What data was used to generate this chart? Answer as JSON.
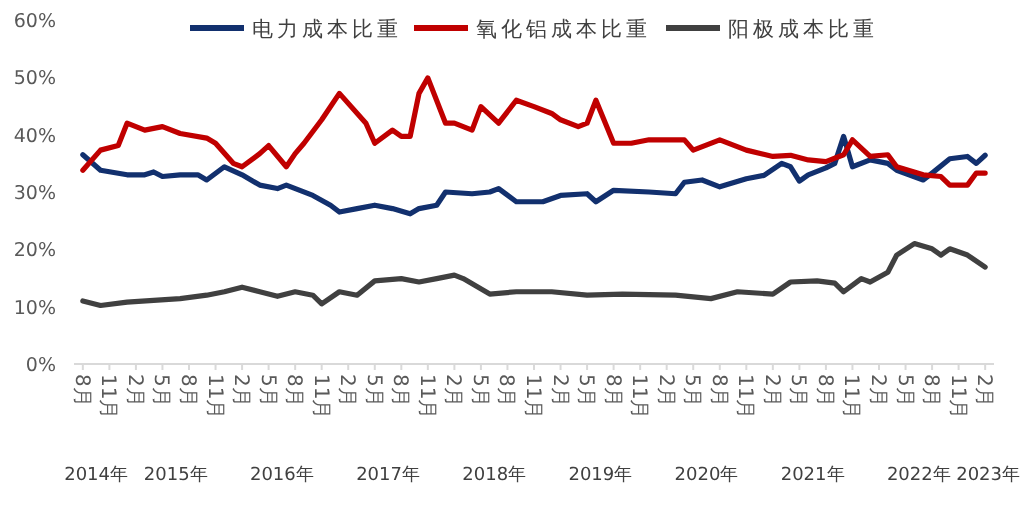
{
  "chart_data": {
    "type": "line",
    "legend": "top",
    "grid": false,
    "marker": "none",
    "line_style": "solid",
    "xlim": [
      "2014-07",
      "2023-03"
    ],
    "ylim": [
      0,
      60
    ],
    "yticks": [
      {
        "value": 0,
        "label": "0%"
      },
      {
        "value": 10,
        "label": "10%"
      },
      {
        "value": 20,
        "label": "20%"
      },
      {
        "value": 30,
        "label": "30%"
      },
      {
        "value": 40,
        "label": "40%"
      },
      {
        "value": 50,
        "label": "50%"
      },
      {
        "value": 60,
        "label": "60%"
      }
    ],
    "xticks": [
      {
        "value": "2014-08",
        "label": "8月"
      },
      {
        "value": "2014-11",
        "label": "11月"
      },
      {
        "value": "2015-02",
        "label": "2月"
      },
      {
        "value": "2015-05",
        "label": "5月"
      },
      {
        "value": "2015-08",
        "label": "8月"
      },
      {
        "value": "2015-11",
        "label": "11月"
      },
      {
        "value": "2016-02",
        "label": "2月"
      },
      {
        "value": "2016-05",
        "label": "5月"
      },
      {
        "value": "2016-08",
        "label": "8月"
      },
      {
        "value": "2016-11",
        "label": "11月"
      },
      {
        "value": "2017-02",
        "label": "2月"
      },
      {
        "value": "2017-05",
        "label": "5月"
      },
      {
        "value": "2017-08",
        "label": "8月"
      },
      {
        "value": "2017-11",
        "label": "11月"
      },
      {
        "value": "2018-02",
        "label": "2月"
      },
      {
        "value": "2018-05",
        "label": "5月"
      },
      {
        "value": "2018-08",
        "label": "8月"
      },
      {
        "value": "2018-11",
        "label": "11月"
      },
      {
        "value": "2019-02",
        "label": "2月"
      },
      {
        "value": "2019-05",
        "label": "5月"
      },
      {
        "value": "2019-08",
        "label": "8月"
      },
      {
        "value": "2019-11",
        "label": "11月"
      },
      {
        "value": "2020-02",
        "label": "2月"
      },
      {
        "value": "2020-05",
        "label": "5月"
      },
      {
        "value": "2020-08",
        "label": "8月"
      },
      {
        "value": "2020-11",
        "label": "11月"
      },
      {
        "value": "2021-02",
        "label": "2月"
      },
      {
        "value": "2021-05",
        "label": "5月"
      },
      {
        "value": "2021-08",
        "label": "8月"
      },
      {
        "value": "2021-11",
        "label": "11月"
      },
      {
        "value": "2022-02",
        "label": "2月"
      },
      {
        "value": "2022-05",
        "label": "5月"
      },
      {
        "value": "2022-08",
        "label": "8月"
      },
      {
        "value": "2022-11",
        "label": "11月"
      },
      {
        "value": "2023-02",
        "label": "2月"
      }
    ],
    "annotations": [
      "2014年",
      "2015年",
      "2016年",
      "2017年",
      "2018年",
      "2019年",
      "2020年",
      "2021年",
      "2022年",
      "2023年"
    ],
    "series": [
      {
        "name": "电力成本比重",
        "color": "#12306e",
        "x": [
          "2014-08",
          "2014-10",
          "2015-01",
          "2015-03",
          "2015-04",
          "2015-05",
          "2015-07",
          "2015-09",
          "2015-10",
          "2015-12",
          "2016-02",
          "2016-04",
          "2016-06",
          "2016-07",
          "2016-10",
          "2016-12",
          "2017-01",
          "2017-03",
          "2017-05",
          "2017-07",
          "2017-09",
          "2017-10",
          "2017-12",
          "2018-01",
          "2018-04",
          "2018-06",
          "2018-07",
          "2018-09",
          "2018-12",
          "2019-02",
          "2019-05",
          "2019-06",
          "2019-08",
          "2019-12",
          "2020-03",
          "2020-04",
          "2020-06",
          "2020-08",
          "2020-11",
          "2021-01",
          "2021-03",
          "2021-04",
          "2021-05",
          "2021-06",
          "2021-08",
          "2021-09",
          "2021-10",
          "2021-11",
          "2022-01",
          "2022-03",
          "2022-04",
          "2022-07",
          "2022-08",
          "2022-10",
          "2022-12",
          "2023-01",
          "2023-02"
        ],
        "values": [
          36.5,
          33.8,
          33.0,
          33.0,
          33.5,
          32.7,
          33.0,
          33.0,
          32.1,
          34.4,
          33.0,
          31.2,
          30.6,
          31.2,
          29.4,
          27.7,
          26.5,
          27.1,
          27.7,
          27.1,
          26.2,
          27.1,
          27.7,
          30.0,
          29.7,
          30.0,
          30.6,
          28.3,
          28.3,
          29.4,
          29.7,
          28.3,
          30.3,
          30.0,
          29.7,
          31.7,
          32.1,
          30.9,
          32.3,
          32.9,
          35.0,
          34.4,
          31.9,
          33.0,
          34.2,
          35.0,
          39.7,
          34.4,
          35.6,
          35.0,
          33.8,
          32.1,
          33.3,
          35.8,
          36.2,
          35.0,
          36.4
        ]
      },
      {
        "name": "氧化铝成本比重",
        "color": "#c00000",
        "x": [
          "2014-08",
          "2014-10",
          "2014-12",
          "2015-01",
          "2015-03",
          "2015-05",
          "2015-07",
          "2015-10",
          "2015-11",
          "2016-01",
          "2016-02",
          "2016-04",
          "2016-05",
          "2016-07",
          "2016-08",
          "2016-09",
          "2016-11",
          "2017-01",
          "2017-04",
          "2017-05",
          "2017-07",
          "2017-08",
          "2017-09",
          "2017-10",
          "2017-11",
          "2018-01",
          "2018-02",
          "2018-04",
          "2018-05",
          "2018-07",
          "2018-09",
          "2018-11",
          "2019-01",
          "2019-02",
          "2019-04",
          "2019-05",
          "2019-06",
          "2019-08",
          "2019-10",
          "2019-12",
          "2020-03",
          "2020-04",
          "2020-05",
          "2020-08",
          "2020-11",
          "2021-02",
          "2021-04",
          "2021-06",
          "2021-08",
          "2021-10",
          "2021-11",
          "2022-01",
          "2022-03",
          "2022-04",
          "2022-07",
          "2022-09",
          "2022-10",
          "2022-12",
          "2023-01",
          "2023-02"
        ],
        "values": [
          33.8,
          37.3,
          38.1,
          42.0,
          40.8,
          41.4,
          40.2,
          39.4,
          38.5,
          35.0,
          34.4,
          36.7,
          38.1,
          34.4,
          36.7,
          38.5,
          42.6,
          47.2,
          42.0,
          38.5,
          40.8,
          39.7,
          39.7,
          47.2,
          49.9,
          42.0,
          42.0,
          40.8,
          44.9,
          42.0,
          46.0,
          44.9,
          43.7,
          42.6,
          41.4,
          42.0,
          46.0,
          38.5,
          38.5,
          39.1,
          39.1,
          39.1,
          37.3,
          39.1,
          37.3,
          36.2,
          36.4,
          35.6,
          35.3,
          36.5,
          39.1,
          36.2,
          36.5,
          34.4,
          33.0,
          32.7,
          31.2,
          31.2,
          33.3,
          33.3
        ]
      },
      {
        "name": "阳极成本比重",
        "color": "#404040",
        "x": [
          "2014-08",
          "2014-10",
          "2015-01",
          "2015-07",
          "2015-10",
          "2015-12",
          "2016-02",
          "2016-04",
          "2016-06",
          "2016-08",
          "2016-10",
          "2016-11",
          "2017-01",
          "2017-03",
          "2017-05",
          "2017-08",
          "2017-10",
          "2017-12",
          "2018-02",
          "2018-03",
          "2018-06",
          "2018-09",
          "2019-01",
          "2019-05",
          "2019-09",
          "2020-03",
          "2020-07",
          "2020-10",
          "2021-02",
          "2021-04",
          "2021-07",
          "2021-09",
          "2021-10",
          "2021-12",
          "2022-01",
          "2022-03",
          "2022-04",
          "2022-06",
          "2022-08",
          "2022-09",
          "2022-10",
          "2022-12",
          "2023-02"
        ],
        "values": [
          11.0,
          10.2,
          10.8,
          11.4,
          12.0,
          12.6,
          13.4,
          12.6,
          11.8,
          12.6,
          12.0,
          10.5,
          12.6,
          12.0,
          14.5,
          14.9,
          14.3,
          14.9,
          15.5,
          14.9,
          12.2,
          12.6,
          12.6,
          12.0,
          12.2,
          12.0,
          11.4,
          12.6,
          12.2,
          14.3,
          14.5,
          14.1,
          12.6,
          14.9,
          14.3,
          16.0,
          19.0,
          21.0,
          20.1,
          19.0,
          20.1,
          19.0,
          16.9
        ]
      }
    ]
  }
}
